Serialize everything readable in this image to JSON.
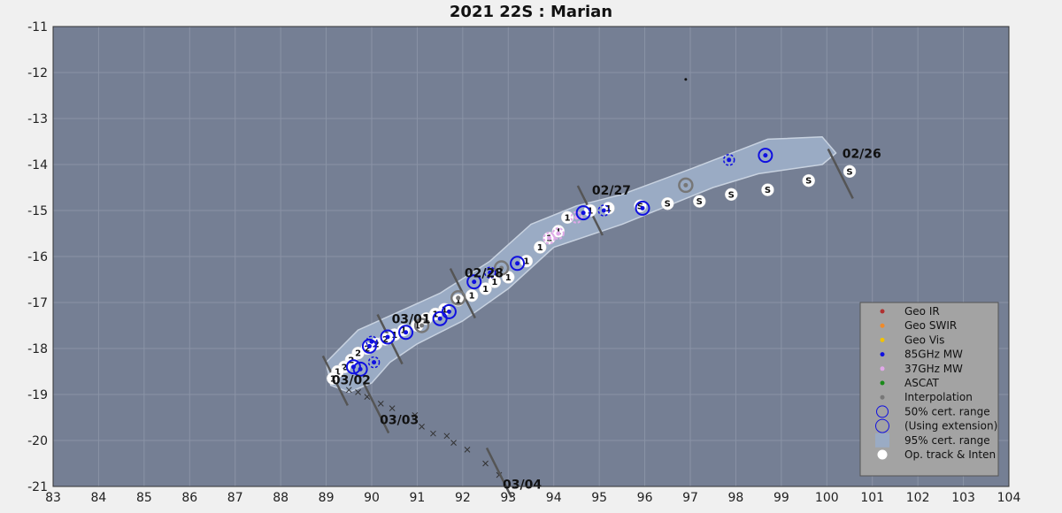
{
  "chart_data": {
    "type": "scatter",
    "title": "2021  22S :  Marian",
    "xlim": [
      83,
      104
    ],
    "ylim": [
      -21,
      -11
    ],
    "xticks": [
      83,
      84,
      85,
      86,
      87,
      88,
      89,
      90,
      91,
      92,
      93,
      94,
      95,
      96,
      97,
      98,
      99,
      100,
      101,
      102,
      103,
      104
    ],
    "yticks": [
      -11,
      -12,
      -13,
      -14,
      -15,
      -16,
      -17,
      -18,
      -19,
      -20,
      -21
    ],
    "grid": true,
    "legend_position": "bottom-right",
    "colors": {
      "background": "#757f94",
      "cone": "#9aabc4",
      "geo_ir": "#b03030",
      "geo_swir": "#f08a2a",
      "geo_vis": "#f2c200",
      "mw85": "#1010e0",
      "mw37": "#e0a8e8",
      "ascat": "#1a8a1a",
      "interp": "#777777"
    },
    "legend": [
      {
        "label": "Geo IR",
        "kind": "dot",
        "color": "#b03030"
      },
      {
        "label": "Geo SWIR",
        "kind": "dot",
        "color": "#f08a2a"
      },
      {
        "label": "Geo Vis",
        "kind": "dot",
        "color": "#f2c200"
      },
      {
        "label": "85GHz MW",
        "kind": "dot",
        "color": "#1010e0"
      },
      {
        "label": "37GHz MW",
        "kind": "dot",
        "color": "#e0a8e8"
      },
      {
        "label": "ASCAT",
        "kind": "dot",
        "color": "#1a8a1a"
      },
      {
        "label": "Interpolation",
        "kind": "dot",
        "color": "#777777"
      },
      {
        "label": "50% cert. range",
        "kind": "ring",
        "color": "#1010e0"
      },
      {
        "label": "(Using extension)",
        "kind": "ring-dashed",
        "color": "#1010e0"
      },
      {
        "label": "95% cert. range",
        "kind": "square",
        "color": "#9aabc4"
      },
      {
        "label": "Op. track & Inten",
        "kind": "white",
        "color": "#ffffff"
      }
    ],
    "date_markers": [
      {
        "label": "02/26",
        "lon": 100.3,
        "lat": -14.2
      },
      {
        "label": "02/27",
        "lon": 94.8,
        "lat": -15.0
      },
      {
        "label": "02/28",
        "lon": 92.0,
        "lat": -16.8
      },
      {
        "label": "03/01",
        "lon": 90.4,
        "lat": -17.8
      },
      {
        "label": "03/02",
        "lon": 89.2,
        "lat": -18.7
      },
      {
        "label": "03/03",
        "lon": 90.1,
        "lat": -19.3
      },
      {
        "label": "03/04",
        "lon": 92.8,
        "lat": -20.7
      }
    ],
    "op_track": [
      {
        "lon": 100.5,
        "lat": -14.15,
        "text": "S"
      },
      {
        "lon": 99.6,
        "lat": -14.35,
        "text": "S"
      },
      {
        "lon": 98.7,
        "lat": -14.55,
        "text": "S"
      },
      {
        "lon": 97.9,
        "lat": -14.65,
        "text": "S"
      },
      {
        "lon": 97.2,
        "lat": -14.8,
        "text": "S"
      },
      {
        "lon": 96.5,
        "lat": -14.85,
        "text": "S"
      },
      {
        "lon": 95.9,
        "lat": -14.9,
        "text": "S"
      },
      {
        "lon": 95.2,
        "lat": -14.95,
        "text": "1"
      },
      {
        "lon": 94.8,
        "lat": -15.0,
        "text": "1"
      },
      {
        "lon": 94.3,
        "lat": -15.15,
        "text": "1"
      },
      {
        "lon": 94.1,
        "lat": -15.45,
        "text": "1"
      },
      {
        "lon": 93.9,
        "lat": -15.6,
        "text": "1"
      },
      {
        "lon": 93.7,
        "lat": -15.8,
        "text": "1"
      },
      {
        "lon": 93.4,
        "lat": -16.1,
        "text": "1"
      },
      {
        "lon": 93.0,
        "lat": -16.45,
        "text": "1"
      },
      {
        "lon": 92.7,
        "lat": -16.55,
        "text": "1"
      },
      {
        "lon": 92.5,
        "lat": -16.7,
        "text": "1"
      },
      {
        "lon": 92.2,
        "lat": -16.85,
        "text": "1"
      },
      {
        "lon": 91.9,
        "lat": -16.95,
        "text": "1"
      },
      {
        "lon": 91.6,
        "lat": -17.15,
        "text": "1"
      },
      {
        "lon": 91.4,
        "lat": -17.25,
        "text": "1"
      },
      {
        "lon": 91.2,
        "lat": -17.35,
        "text": "1"
      },
      {
        "lon": 91.0,
        "lat": -17.5,
        "text": "1"
      },
      {
        "lon": 90.7,
        "lat": -17.6,
        "text": "1"
      },
      {
        "lon": 90.5,
        "lat": -17.7,
        "text": "1"
      },
      {
        "lon": 90.3,
        "lat": -17.8,
        "text": "2"
      },
      {
        "lon": 90.1,
        "lat": -17.9,
        "text": "2"
      },
      {
        "lon": 89.9,
        "lat": -18.0,
        "text": "2"
      },
      {
        "lon": 89.7,
        "lat": -18.1,
        "text": "2"
      },
      {
        "lon": 89.55,
        "lat": -18.25,
        "text": "2"
      },
      {
        "lon": 89.4,
        "lat": -18.4,
        "text": "2"
      },
      {
        "lon": 89.25,
        "lat": -18.5,
        "text": "1"
      },
      {
        "lon": 89.15,
        "lat": -18.65,
        "text": "1"
      }
    ],
    "fixes_85ghz": [
      {
        "lon": 98.65,
        "lat": -13.8,
        "ext": false
      },
      {
        "lon": 97.85,
        "lat": -13.9,
        "ext": true
      },
      {
        "lon": 95.95,
        "lat": -14.95,
        "ext": false
      },
      {
        "lon": 95.1,
        "lat": -15.0,
        "ext": true
      },
      {
        "lon": 94.65,
        "lat": -15.05,
        "ext": false
      },
      {
        "lon": 93.2,
        "lat": -16.15,
        "ext": false
      },
      {
        "lon": 92.6,
        "lat": -16.35,
        "ext": true
      },
      {
        "lon": 92.25,
        "lat": -16.55,
        "ext": false
      },
      {
        "lon": 91.7,
        "lat": -17.2,
        "ext": false
      },
      {
        "lon": 91.5,
        "lat": -17.35,
        "ext": false
      },
      {
        "lon": 90.75,
        "lat": -17.65,
        "ext": false
      },
      {
        "lon": 90.35,
        "lat": -17.75,
        "ext": false
      },
      {
        "lon": 90.0,
        "lat": -17.85,
        "ext": true
      },
      {
        "lon": 89.95,
        "lat": -17.95,
        "ext": false
      },
      {
        "lon": 90.05,
        "lat": -18.3,
        "ext": true
      },
      {
        "lon": 89.75,
        "lat": -18.45,
        "ext": false
      },
      {
        "lon": 89.6,
        "lat": -18.4,
        "ext": false
      }
    ],
    "fixes_37ghz": [
      {
        "lon": 94.5,
        "lat": -15.15
      },
      {
        "lon": 94.1,
        "lat": -15.5
      },
      {
        "lon": 93.9,
        "lat": -15.6
      }
    ],
    "fixes_interp": [
      {
        "lon": 96.9,
        "lat": -14.45
      },
      {
        "lon": 92.85,
        "lat": -16.25
      },
      {
        "lon": 91.9,
        "lat": -16.9
      },
      {
        "lon": 91.1,
        "lat": -17.5
      }
    ],
    "forecast_track": [
      {
        "lon": 89.5,
        "lat": -18.9
      },
      {
        "lon": 89.7,
        "lat": -18.95
      },
      {
        "lon": 89.9,
        "lat": -19.05
      },
      {
        "lon": 90.2,
        "lat": -19.2
      },
      {
        "lon": 90.45,
        "lat": -19.3
      },
      {
        "lon": 90.95,
        "lat": -19.45
      },
      {
        "lon": 91.1,
        "lat": -19.7
      },
      {
        "lon": 91.35,
        "lat": -19.85
      },
      {
        "lon": 91.65,
        "lat": -19.9
      },
      {
        "lon": 91.8,
        "lat": -20.05
      },
      {
        "lon": 92.1,
        "lat": -20.2
      },
      {
        "lon": 92.5,
        "lat": -20.5
      },
      {
        "lon": 92.8,
        "lat": -20.75
      }
    ],
    "extra_dots": [
      {
        "lon": 96.9,
        "lat": -12.15
      }
    ],
    "cone_95": [
      [
        99.9,
        -13.4
      ],
      [
        100.2,
        -13.75
      ],
      [
        99.9,
        -14.0
      ],
      [
        98.5,
        -14.2
      ],
      [
        97.5,
        -14.5
      ],
      [
        96.5,
        -14.9
      ],
      [
        95.5,
        -15.3
      ],
      [
        94.0,
        -15.8
      ],
      [
        93.0,
        -16.7
      ],
      [
        92.0,
        -17.4
      ],
      [
        91.0,
        -17.9
      ],
      [
        90.4,
        -18.3
      ],
      [
        90.0,
        -18.75
      ],
      [
        89.5,
        -18.95
      ],
      [
        89.1,
        -18.8
      ],
      [
        89.0,
        -18.3
      ],
      [
        89.7,
        -17.6
      ],
      [
        90.6,
        -17.2
      ],
      [
        91.5,
        -16.8
      ],
      [
        92.6,
        -16.1
      ],
      [
        93.5,
        -15.3
      ],
      [
        94.5,
        -14.9
      ],
      [
        95.5,
        -14.65
      ],
      [
        97.0,
        -14.1
      ],
      [
        98.7,
        -13.45
      ]
    ]
  }
}
